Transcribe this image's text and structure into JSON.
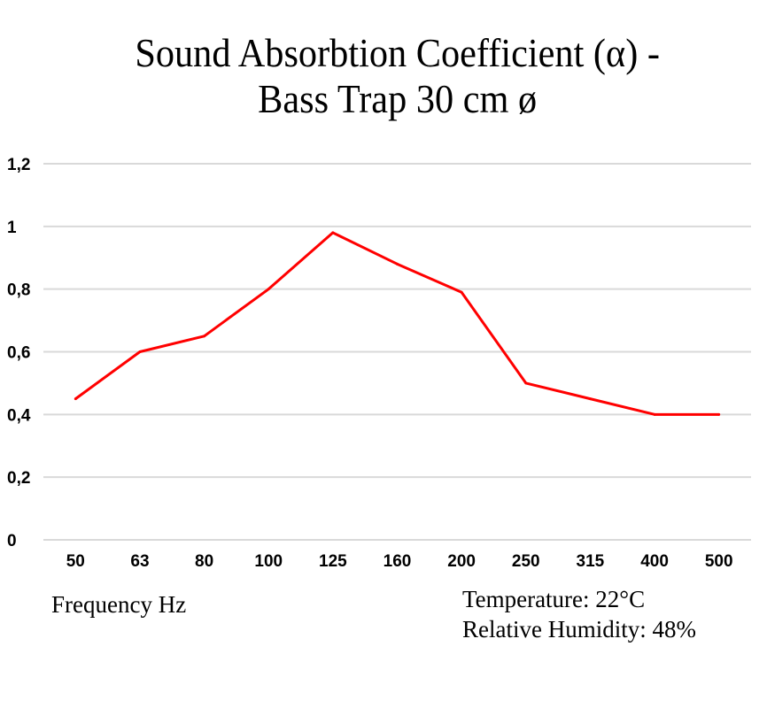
{
  "chart_data": {
    "type": "line",
    "title_line1": "Sound Absorbtion Coefficient (α) -",
    "title_line2": "Bass Trap 30 cm ø",
    "xlabel": "Frequency Hz",
    "ylabel": "",
    "categories": [
      "50",
      "63",
      "80",
      "100",
      "125",
      "160",
      "200",
      "250",
      "315",
      "400",
      "500"
    ],
    "series": [
      {
        "name": "Absorption coefficient",
        "color": "#ff0000",
        "values": [
          0.45,
          0.6,
          0.65,
          0.8,
          0.98,
          0.88,
          0.79,
          0.5,
          0.45,
          0.4,
          0.4
        ]
      }
    ],
    "ylim": [
      0,
      1.2
    ],
    "yticks": [
      0,
      0.2,
      0.4,
      0.6,
      0.8,
      1,
      1.2
    ],
    "ytick_labels": [
      "0",
      "0,2",
      "0,4",
      "0,6",
      "0,8",
      "1",
      "1,2"
    ],
    "grid": true,
    "legend": "none"
  },
  "notes": {
    "temperature": "Temperature: 22°C",
    "humidity": "Relative Humidity: 48%"
  }
}
